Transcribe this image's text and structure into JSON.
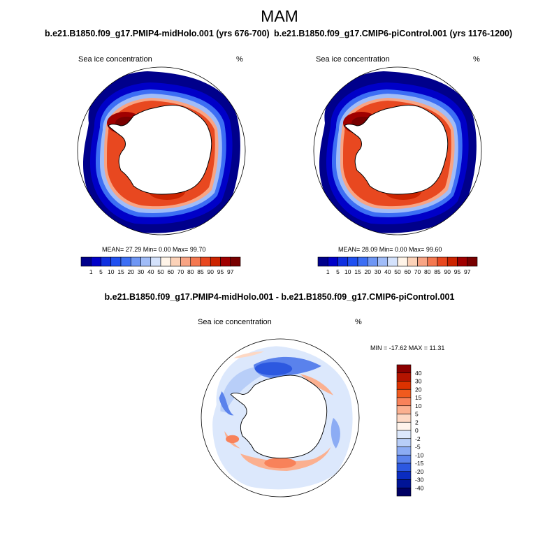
{
  "figure": {
    "title": "MAM",
    "panels": {
      "left": {
        "case_title": "b.e21.B1850.f09_g17.PMIP4-midHolo.001 (yrs 676-700)",
        "variable": "Sea ice concentration",
        "units": "%",
        "stats": "MEAN=  27.29  Min=   0.00  Max=  99.70"
      },
      "right": {
        "case_title": "b.e21.B1850.f09_g17.CMIP6-piControl.001 (yrs 1176-1200)",
        "variable": "Sea ice concentration",
        "units": "%",
        "stats": "MEAN=  28.09  Min=   0.00  Max=  99.60"
      },
      "diff": {
        "case_title": "b.e21.B1850.f09_g17.PMIP4-midHolo.001 - b.e21.B1850.f09_g17.CMIP6-piControl.001",
        "variable": "Sea ice concentration",
        "units": "%",
        "stats": "MIN = -17.62 MAX =  11.31"
      }
    }
  },
  "chart_data": [
    {
      "type": "heatmap",
      "projection": "south-polar-stereographic",
      "title": "b.e21.B1850.f09_g17.PMIP4-midHolo.001 (yrs 676-700)",
      "variable": "Sea ice concentration",
      "units": "%",
      "mean": 27.29,
      "min": 0.0,
      "max": 99.7,
      "colorbar": {
        "orientation": "horizontal",
        "levels": [
          1,
          5,
          10,
          15,
          20,
          30,
          40,
          50,
          60,
          70,
          80,
          85,
          90,
          95,
          97
        ]
      }
    },
    {
      "type": "heatmap",
      "projection": "south-polar-stereographic",
      "title": "b.e21.B1850.f09_g17.CMIP6-piControl.001 (yrs 1176-1200)",
      "variable": "Sea ice concentration",
      "units": "%",
      "mean": 28.09,
      "min": 0.0,
      "max": 99.6,
      "colorbar": {
        "orientation": "horizontal",
        "levels": [
          1,
          5,
          10,
          15,
          20,
          30,
          40,
          50,
          60,
          70,
          80,
          85,
          90,
          95,
          97
        ]
      }
    },
    {
      "type": "heatmap",
      "projection": "south-polar-stereographic",
      "title": "b.e21.B1850.f09_g17.PMIP4-midHolo.001 - b.e21.B1850.f09_g17.CMIP6-piControl.001",
      "variable": "Sea ice concentration",
      "units": "%",
      "min": -17.62,
      "max": 11.31,
      "colorbar": {
        "orientation": "vertical",
        "levels": [
          40,
          30,
          20,
          15,
          10,
          5,
          2,
          0,
          -2,
          -5,
          -10,
          -15,
          -20,
          -30,
          -40
        ]
      }
    }
  ],
  "colors": {
    "abs_palette": [
      "#00008b",
      "#0000c8",
      "#1030e0",
      "#2050f0",
      "#3c6ef4",
      "#6e96f4",
      "#a0bcf8",
      "#d4e2fc",
      "#fff4e8",
      "#fcd2b8",
      "#f8a484",
      "#f47850",
      "#e84820",
      "#cc2400",
      "#a00000",
      "#780000"
    ],
    "diff_palette": [
      "#8b0000",
      "#b41400",
      "#dc3200",
      "#f05a1e",
      "#f8825a",
      "#fbb090",
      "#fdd8c4",
      "#fff4ec",
      "#dce8fc",
      "#b8cef8",
      "#8cacf4",
      "#5a82ec",
      "#2c58e0",
      "#0a2cc0",
      "#001496",
      "#000064"
    ]
  }
}
